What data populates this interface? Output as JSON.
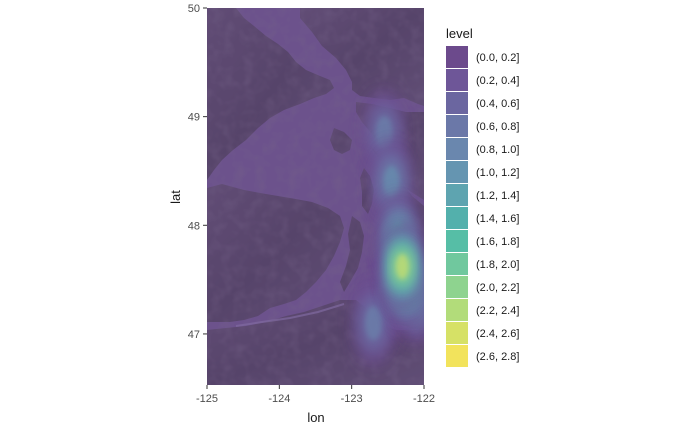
{
  "chart_data": {
    "type": "heatmap",
    "xlabel": "lon",
    "ylabel": "lat",
    "xlim": [
      -125,
      -122
    ],
    "ylim": [
      46.53,
      50
    ],
    "x_ticks": [
      -125,
      -124,
      -123,
      -122
    ],
    "y_ticks": [
      47,
      48,
      49,
      50
    ],
    "x_tick_labels": [
      "-125",
      "-124",
      "-123",
      "-122"
    ],
    "y_tick_labels": [
      "47",
      "48",
      "49",
      "50"
    ],
    "grid": false,
    "background": "basemap terrain (Puget Sound / Salish Sea)",
    "legend": {
      "title": "level",
      "placement": "right",
      "entries": [
        {
          "label": "(0.0, 0.2]",
          "color": "#6c4a8c"
        },
        {
          "label": "(0.2, 0.4]",
          "color": "#6e5698"
        },
        {
          "label": "(0.4, 0.6]",
          "color": "#6b66a0"
        },
        {
          "label": "(0.6, 0.8]",
          "color": "#6b78a8"
        },
        {
          "label": "(0.8, 1.0]",
          "color": "#6a87ae"
        },
        {
          "label": "(1.0, 1.2]",
          "color": "#6595b1"
        },
        {
          "label": "(1.2, 1.4]",
          "color": "#5ea4b0"
        },
        {
          "label": "(1.4, 1.6]",
          "color": "#53b0ac"
        },
        {
          "label": "(1.6, 1.8]",
          "color": "#56bea6"
        },
        {
          "label": "(1.8, 2.0]",
          "color": "#70c89e"
        },
        {
          "label": "(2.0, 2.2]",
          "color": "#8ed38f"
        },
        {
          "label": "(2.2, 2.4]",
          "color": "#b2dc7a"
        },
        {
          "label": "(2.4, 2.6]",
          "color": "#d6e166"
        },
        {
          "label": "(2.6, 2.8]",
          "color": "#f2e35c"
        }
      ]
    },
    "density_blobs": [
      {
        "lon": -122.3,
        "lat": 47.62,
        "level": 2.7
      },
      {
        "lon": -122.25,
        "lat": 47.45,
        "level": 2.1
      },
      {
        "lon": -122.35,
        "lat": 47.9,
        "level": 1.7
      },
      {
        "lon": -122.45,
        "lat": 48.4,
        "level": 1.3
      },
      {
        "lon": -122.55,
        "lat": 48.85,
        "level": 1.1
      },
      {
        "lon": -122.7,
        "lat": 47.1,
        "level": 1.0
      },
      {
        "lon": -122.1,
        "lat": 47.3,
        "level": 1.3
      },
      {
        "lon": -122.55,
        "lat": 47.3,
        "level": 0.9
      }
    ]
  }
}
